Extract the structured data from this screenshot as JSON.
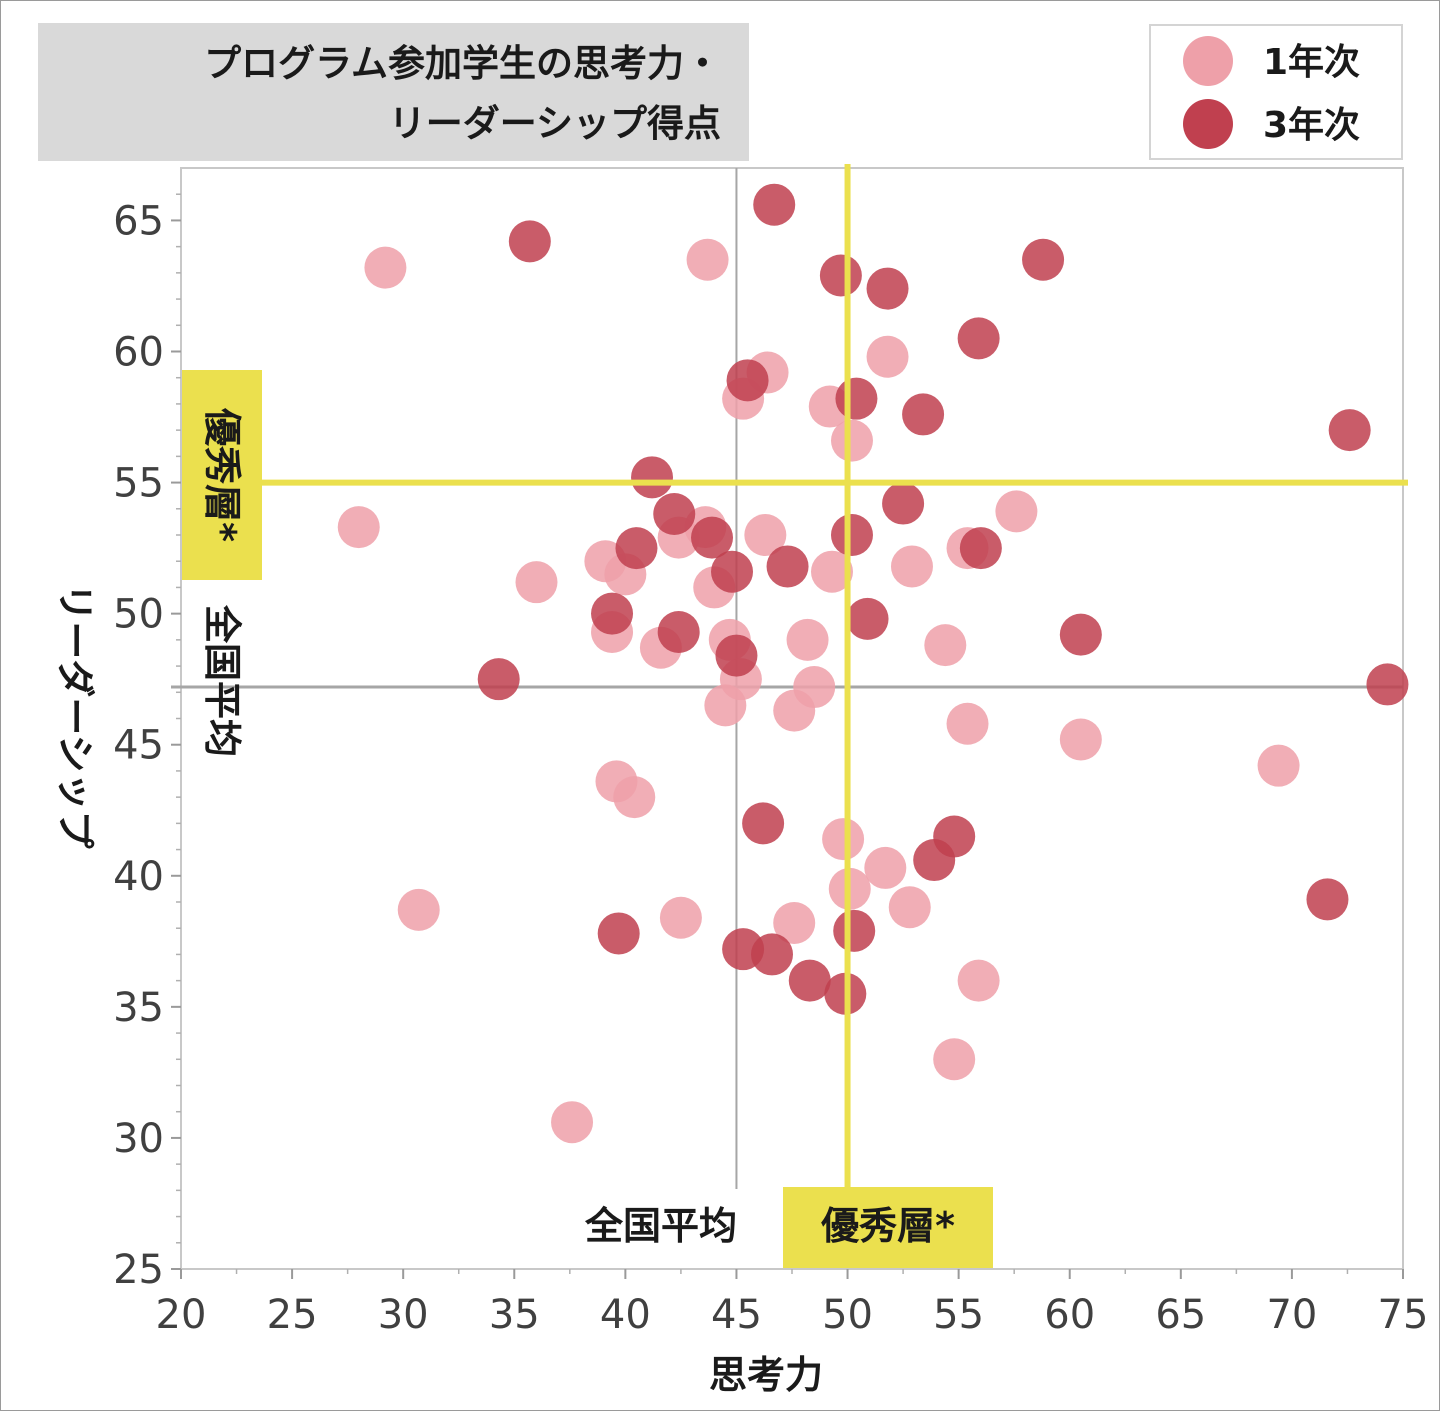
{
  "chart_data": {
    "type": "scatter",
    "title_lines": [
      "プログラム参加学生の思考力・",
      "リーダーシップ得点"
    ],
    "xlabel": "思考力",
    "ylabel": "リーダーシップ",
    "xlim": [
      20,
      75
    ],
    "ylim": [
      25,
      67
    ],
    "x_ticks": [
      "20",
      "25",
      "30",
      "35",
      "40",
      "45",
      "50",
      "55",
      "60",
      "65",
      "70",
      "75"
    ],
    "y_ticks": [
      "25",
      "30",
      "35",
      "40",
      "45",
      "50",
      "55",
      "60",
      "65"
    ],
    "grid": false,
    "legend_position": "top-right",
    "reference_lines": {
      "national_average": {
        "label": "全国平均",
        "x": 45,
        "y": 47.2,
        "color": "#a6a6a6"
      },
      "excellent": {
        "label": "優秀層*",
        "x": 50,
        "y": 55,
        "color": "#ebe04e"
      }
    },
    "series": [
      {
        "name": "1年次",
        "color": "#eea0a9",
        "points": [
          [
            29.2,
            63.2
          ],
          [
            43.7,
            63.5
          ],
          [
            28.0,
            53.3
          ],
          [
            36.0,
            51.2
          ],
          [
            46.4,
            59.2
          ],
          [
            45.3,
            58.2
          ],
          [
            49.2,
            57.9
          ],
          [
            50.2,
            56.6
          ],
          [
            51.8,
            59.8
          ],
          [
            57.6,
            53.9
          ],
          [
            55.4,
            52.5
          ],
          [
            52.9,
            51.8
          ],
          [
            46.3,
            53.0
          ],
          [
            43.6,
            53.3
          ],
          [
            42.4,
            52.9
          ],
          [
            39.1,
            52.0
          ],
          [
            40.0,
            51.5
          ],
          [
            44.0,
            51.0
          ],
          [
            49.3,
            51.6
          ],
          [
            39.4,
            49.3
          ],
          [
            41.6,
            48.7
          ],
          [
            44.7,
            49.0
          ],
          [
            45.2,
            47.5
          ],
          [
            48.2,
            49.0
          ],
          [
            48.5,
            47.2
          ],
          [
            44.5,
            46.5
          ],
          [
            47.6,
            46.3
          ],
          [
            54.4,
            48.8
          ],
          [
            55.4,
            45.8
          ],
          [
            60.5,
            45.2
          ],
          [
            69.4,
            44.2
          ],
          [
            39.6,
            43.6
          ],
          [
            40.4,
            43.0
          ],
          [
            30.7,
            38.7
          ],
          [
            42.5,
            38.4
          ],
          [
            47.6,
            38.2
          ],
          [
            49.8,
            41.4
          ],
          [
            50.1,
            39.5
          ],
          [
            51.7,
            40.3
          ],
          [
            52.8,
            38.8
          ],
          [
            55.9,
            36.0
          ],
          [
            54.8,
            33.0
          ],
          [
            37.6,
            30.6
          ]
        ]
      },
      {
        "name": "3年次",
        "color": "#c0404f",
        "points": [
          [
            35.7,
            64.2
          ],
          [
            46.7,
            65.6
          ],
          [
            49.7,
            62.9
          ],
          [
            51.8,
            62.4
          ],
          [
            58.8,
            63.5
          ],
          [
            55.9,
            60.5
          ],
          [
            45.5,
            58.9
          ],
          [
            50.4,
            58.2
          ],
          [
            53.4,
            57.6
          ],
          [
            72.6,
            57.0
          ],
          [
            41.2,
            55.2
          ],
          [
            42.2,
            53.8
          ],
          [
            40.5,
            52.5
          ],
          [
            43.9,
            52.9
          ],
          [
            44.8,
            51.6
          ],
          [
            47.3,
            51.8
          ],
          [
            50.2,
            53.0
          ],
          [
            52.5,
            54.2
          ],
          [
            56.0,
            52.5
          ],
          [
            39.4,
            50.0
          ],
          [
            42.4,
            49.3
          ],
          [
            45.0,
            48.4
          ],
          [
            50.9,
            49.8
          ],
          [
            60.5,
            49.2
          ],
          [
            34.3,
            47.5
          ],
          [
            74.3,
            47.3
          ],
          [
            46.2,
            42.0
          ],
          [
            54.8,
            41.5
          ],
          [
            53.9,
            40.6
          ],
          [
            71.6,
            39.1
          ],
          [
            39.7,
            37.8
          ],
          [
            45.3,
            37.2
          ],
          [
            46.6,
            37.0
          ],
          [
            48.3,
            36.0
          ],
          [
            49.9,
            35.5
          ],
          [
            50.3,
            37.9
          ]
        ]
      }
    ]
  }
}
